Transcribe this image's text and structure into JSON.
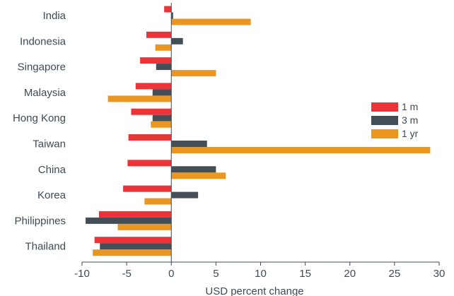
{
  "chart_data": {
    "type": "bar",
    "orientation": "horizontal",
    "xlabel": "USD percent change",
    "xlim": [
      -10,
      30
    ],
    "xticks": [
      -10,
      -5,
      0,
      5,
      10,
      15,
      20,
      25,
      30
    ],
    "grid": false,
    "legend_position": "right",
    "categories": [
      "India",
      "Indonesia",
      "Singapore",
      "Malaysia",
      "Hong Kong",
      "Taiwan",
      "China",
      "Korea",
      "Philippines",
      "Thailand"
    ],
    "series": [
      {
        "name": "1 m",
        "color": "#ee3338",
        "values": [
          -0.8,
          -2.8,
          -3.5,
          -4.0,
          -4.5,
          -4.8,
          -4.9,
          -5.4,
          -8.1,
          -8.6
        ]
      },
      {
        "name": "3 m",
        "color": "#434e57",
        "values": [
          0.2,
          1.3,
          -1.7,
          -2.1,
          -2.1,
          4.0,
          5.0,
          3.0,
          -9.6,
          -8.0
        ]
      },
      {
        "name": "1 yr",
        "color": "#eb961f",
        "values": [
          8.9,
          -1.8,
          5.0,
          -7.1,
          -2.3,
          29.0,
          6.1,
          -3.0,
          -6.0,
          -8.8
        ]
      }
    ]
  }
}
